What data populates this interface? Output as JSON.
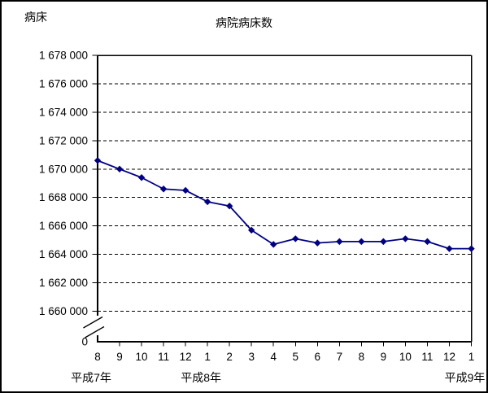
{
  "window": {
    "background": "#ffffff",
    "frame_border_color": "#000000"
  },
  "chart_data": {
    "type": "line",
    "title": "病院病床数",
    "y_axis_unit_label": "病床",
    "grid": {
      "horizontal": "dashed",
      "color": "#000000"
    },
    "x_axis": {
      "tick_labels": [
        "8",
        "9",
        "10",
        "11",
        "12",
        "1",
        "2",
        "3",
        "4",
        "5",
        "6",
        "7",
        "8",
        "9",
        "10",
        "11",
        "12",
        "1"
      ],
      "era_labels": [
        {
          "label": "平成7年",
          "tick_index": 0
        },
        {
          "label": "平成8年",
          "tick_index": 5
        },
        {
          "label": "平成9年",
          "tick_index": 17
        }
      ]
    },
    "y_axis": {
      "tick_values": [
        1678000,
        1676000,
        1674000,
        1672000,
        1670000,
        1668000,
        1666000,
        1664000,
        1662000,
        1660000
      ],
      "tick_labels": [
        "1 678 000",
        "1 676 000",
        "1 674 000",
        "1 672 000",
        "1 670 000",
        "1 668 000",
        "1 666 000",
        "1 664 000",
        "1 662 000",
        "1 660 000"
      ],
      "origin_label": "0",
      "axis_break": true,
      "display_range": [
        1660000,
        1678000
      ]
    },
    "series": [
      {
        "name": "病院病床数",
        "color": "#000080",
        "marker": "diamond",
        "values": [
          1670600,
          1670000,
          1669400,
          1668600,
          1668500,
          1667700,
          1667400,
          1665700,
          1664700,
          1665100,
          1664800,
          1664900,
          1664900,
          1664900,
          1665100,
          1664900,
          1664400,
          1664400
        ]
      }
    ]
  }
}
